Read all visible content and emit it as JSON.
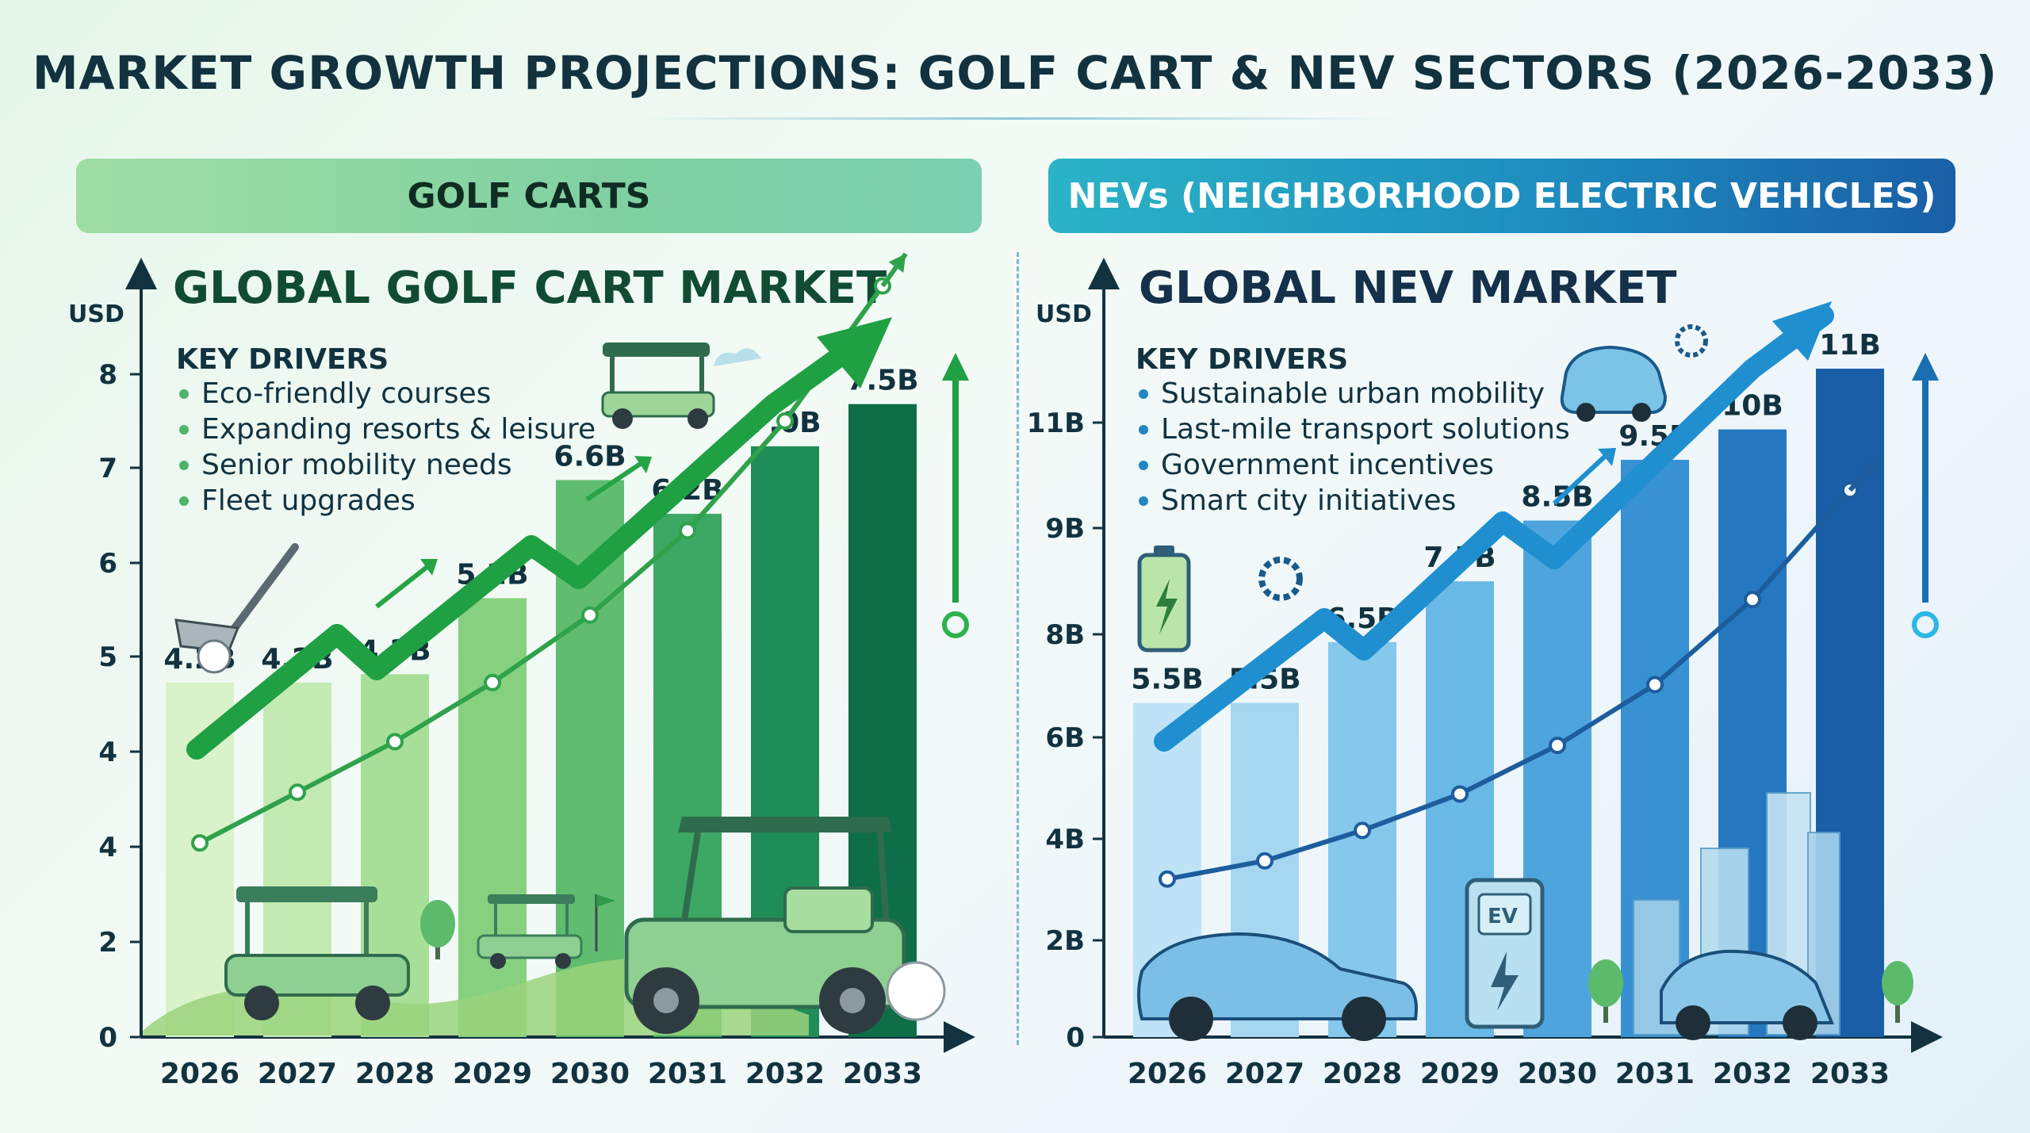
{
  "title": "MARKET GROWTH PROJECTIONS: GOLF CART & NEV SECTORS (2026-2033)",
  "colors": {
    "golf_accent": "#1e9a3c",
    "golf_dark": "#0f6e48",
    "nev_accent": "#1f87c4",
    "nev_dark": "#17558f",
    "text_dark": "#12323f"
  },
  "panels": {
    "golf": {
      "banner": "GOLF CARTS",
      "chart_title": "GLOBAL GOLF CART MARKET",
      "drivers_heading": "KEY DRIVERS",
      "drivers": [
        "Eco-friendly courses",
        "Expanding resorts & leisure",
        "Senior mobility needs",
        "Fleet upgrades"
      ],
      "icons": [
        "golf-club-icon",
        "golf-cart-icon",
        "growth-arrow-icon",
        "golf-ball-icon",
        "tree-icon",
        "flag-icon"
      ]
    },
    "nev": {
      "banner": "NEVs (NEIGHBORHOOD ELECTRIC VEHICLES)",
      "chart_title": "GLOBAL NEV MARKET",
      "drivers_heading": "KEY DRIVERS",
      "drivers": [
        "Sustainable urban mobility",
        "Last-mile transport solutions",
        "Government incentives",
        "Smart city initiatives"
      ],
      "icons": [
        "electric-car-icon",
        "battery-charging-icon",
        "gear-icon",
        "ev-charger-icon",
        "city-skyline-icon",
        "tree-icon"
      ]
    }
  },
  "chart_data": [
    {
      "type": "bar",
      "id": "golf",
      "title": "GLOBAL GOLF CART MARKET",
      "ylabel": "USD",
      "categories": [
        "2026",
        "2027",
        "2028",
        "2029",
        "2030",
        "2031",
        "2032",
        "2033"
      ],
      "values": [
        4.2,
        4.2,
        4.3,
        5.2,
        6.6,
        6.2,
        7.0,
        7.5
      ],
      "value_labels": [
        "4.2B",
        "4.2B",
        "4.3B",
        "5.2B",
        "6.6B",
        "6.2B",
        "7.0B",
        "7.5B"
      ],
      "ytick_labels": [
        "0",
        "2",
        "4",
        "4",
        "5",
        "6",
        "7",
        "8"
      ],
      "trend_line": [
        2.3,
        2.9,
        3.5,
        4.2,
        5.0,
        6.0,
        7.3,
        8.9
      ],
      "bar_colors": [
        "#d9f2c9",
        "#c4eab3",
        "#a8df98",
        "#86d07f",
        "#60bc6f",
        "#3da863",
        "#1f8d58",
        "#0d6e48"
      ],
      "grid": false,
      "legend": "none"
    },
    {
      "type": "bar",
      "id": "nev",
      "title": "GLOBAL NEV MARKET",
      "ylabel": "USD",
      "categories": [
        "2026",
        "2027",
        "2028",
        "2029",
        "2030",
        "2031",
        "2032",
        "2033"
      ],
      "values": [
        5.5,
        5.5,
        6.5,
        7.5,
        8.5,
        9.5,
        10,
        11
      ],
      "value_labels": [
        "5.5B",
        "5.5B",
        "6.5B",
        "7.5B",
        "8.5B",
        "9.5B",
        "10B",
        "11B"
      ],
      "ytick_labels": [
        "0",
        "2B",
        "4B",
        "6B",
        "8B",
        "9B",
        "11B"
      ],
      "trend_line": [
        2.6,
        2.9,
        3.4,
        4.0,
        4.8,
        5.8,
        7.2,
        9.0
      ],
      "bar_colors": [
        "#bfe3f6",
        "#a6d7f1",
        "#86c8ec",
        "#69b8e6",
        "#4ea5dd",
        "#3791d2",
        "#2578c0",
        "#1a5ea7"
      ],
      "grid": false,
      "legend": "none"
    }
  ]
}
